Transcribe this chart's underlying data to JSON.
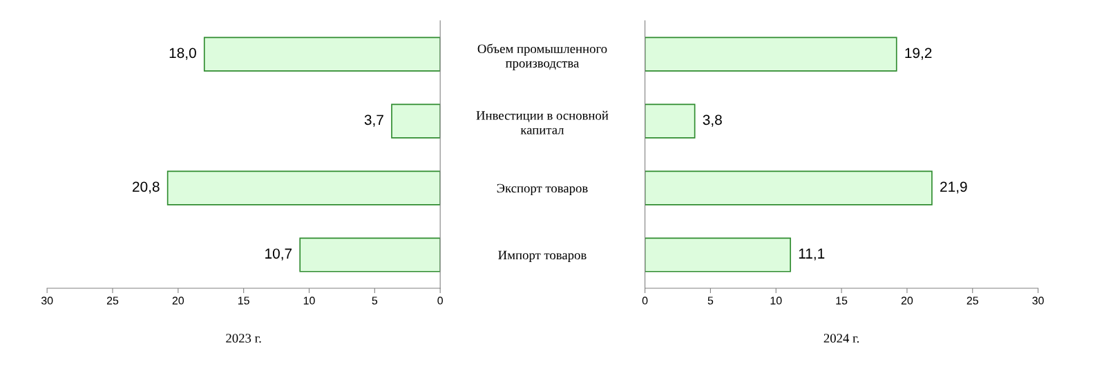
{
  "chart_data": [
    {
      "type": "bar",
      "orientation": "horizontal",
      "categories": [
        null,
        null,
        null,
        null
      ],
      "values": [
        18.0,
        3.7,
        20.8,
        10.7
      ],
      "value_labels": [
        "18,0",
        "3,7",
        "20,8",
        "10,7"
      ],
      "color": "#ddfcdd",
      "xlim": [
        30,
        0
      ],
      "xticks": [
        30,
        25,
        20,
        15,
        10,
        5,
        0
      ],
      "xlabel": "2023 г.",
      "tick_labels": "x",
      "grid": false,
      "legend": false
    },
    {
      "type": "bar",
      "orientation": "horizontal",
      "categories": [
        "Объем промышленного производства",
        "Инвестиции в основной капитал",
        "Экспорт товаров",
        "Импорт товаров"
      ],
      "values": [
        19.2,
        3.8,
        21.9,
        11.1
      ],
      "value_labels": [
        "19,2",
        "3,8",
        "21,9",
        "11,1"
      ],
      "color": "#ddfcdd",
      "xlim": [
        0,
        30
      ],
      "xticks": [
        0,
        5,
        10,
        15,
        20,
        25,
        30
      ],
      "xlabel": "2024 г.",
      "grid": false,
      "legend": false
    }
  ]
}
